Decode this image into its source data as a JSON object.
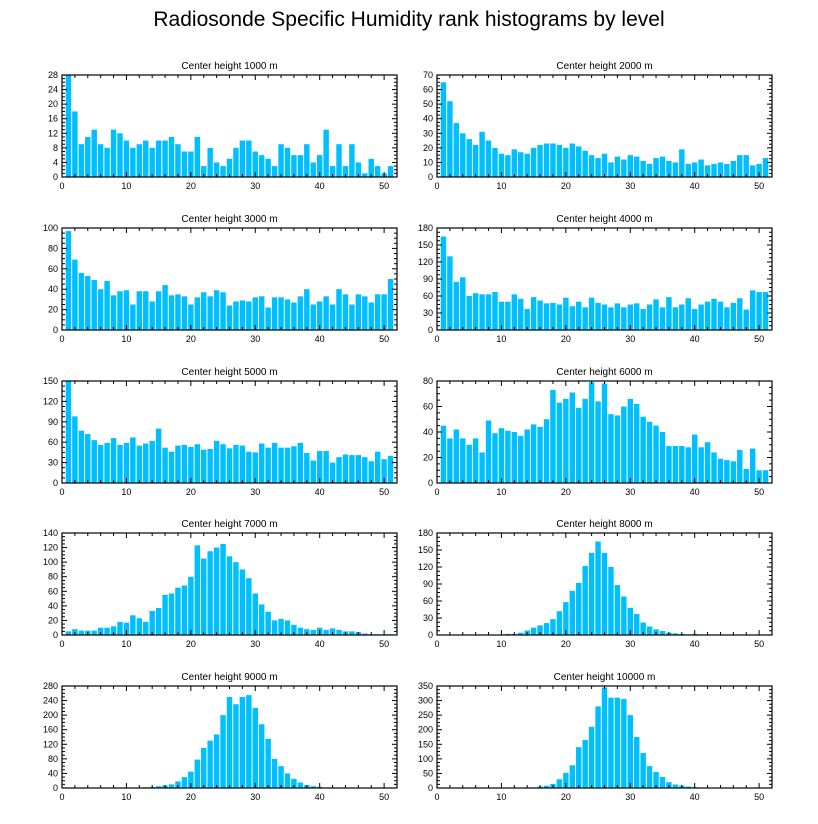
{
  "figure": {
    "title": "Radiosonde Specific Humidity rank histograms by level",
    "bar_color": "#00bfff"
  },
  "chart_data": [
    {
      "type": "bar",
      "title": "Center height 1000 m",
      "xlim": [
        0,
        52
      ],
      "ylim": [
        0,
        28
      ],
      "xticks": [
        0,
        10,
        20,
        30,
        40,
        50
      ],
      "yticks": [
        0,
        4,
        8,
        12,
        16,
        20,
        24,
        28
      ],
      "x_start": 1,
      "values": [
        28,
        18,
        9,
        11,
        13,
        9,
        8,
        13,
        12,
        10,
        8,
        9,
        10,
        8,
        10,
        10,
        11,
        9,
        7,
        7,
        11,
        3,
        8,
        4,
        3,
        5,
        8,
        10,
        10,
        7,
        6,
        5,
        3,
        9,
        8,
        6,
        6,
        9,
        4,
        6,
        13,
        3,
        9,
        3,
        9,
        4,
        1,
        5,
        3,
        1,
        3
      ]
    },
    {
      "type": "bar",
      "title": "Center height 2000 m",
      "xlim": [
        0,
        52
      ],
      "ylim": [
        0,
        70
      ],
      "xticks": [
        0,
        10,
        20,
        30,
        40,
        50
      ],
      "yticks": [
        0,
        10,
        20,
        30,
        40,
        50,
        60,
        70
      ],
      "x_start": 1,
      "values": [
        65,
        52,
        37,
        30,
        26,
        22,
        31,
        25,
        20,
        16,
        15,
        19,
        17,
        16,
        20,
        22,
        23,
        23,
        22,
        20,
        23,
        21,
        18,
        15,
        13,
        16,
        10,
        14,
        12,
        15,
        14,
        11,
        9,
        13,
        14,
        11,
        10,
        19,
        9,
        10,
        12,
        8,
        9,
        10,
        9,
        11,
        15,
        15,
        8,
        9,
        13
      ]
    },
    {
      "type": "bar",
      "title": "Center height 3000 m",
      "xlim": [
        0,
        52
      ],
      "ylim": [
        0,
        100
      ],
      "xticks": [
        0,
        10,
        20,
        30,
        40,
        50
      ],
      "yticks": [
        0,
        20,
        40,
        60,
        80,
        100
      ],
      "x_start": 1,
      "values": [
        97,
        69,
        56,
        53,
        49,
        40,
        48,
        34,
        38,
        39,
        25,
        38,
        38,
        28,
        38,
        44,
        34,
        35,
        33,
        25,
        32,
        37,
        33,
        39,
        37,
        24,
        28,
        29,
        28,
        32,
        33,
        22,
        32,
        32,
        30,
        27,
        33,
        40,
        25,
        28,
        33,
        25,
        40,
        35,
        25,
        35,
        33,
        27,
        35,
        35,
        50
      ]
    },
    {
      "type": "bar",
      "title": "Center height 4000 m",
      "xlim": [
        0,
        52
      ],
      "ylim": [
        0,
        180
      ],
      "xticks": [
        0,
        10,
        20,
        30,
        40,
        50
      ],
      "yticks": [
        0,
        30,
        60,
        90,
        120,
        150,
        180
      ],
      "x_start": 1,
      "values": [
        165,
        130,
        85,
        93,
        60,
        65,
        63,
        63,
        67,
        50,
        50,
        63,
        55,
        37,
        58,
        52,
        47,
        48,
        45,
        57,
        42,
        50,
        40,
        57,
        48,
        45,
        40,
        47,
        40,
        45,
        47,
        37,
        45,
        54,
        40,
        58,
        40,
        45,
        56,
        37,
        45,
        50,
        55,
        50,
        40,
        48,
        56,
        36,
        70,
        67,
        67
      ]
    },
    {
      "type": "bar",
      "title": "Center height 5000 m",
      "xlim": [
        0,
        52
      ],
      "ylim": [
        0,
        150
      ],
      "xticks": [
        0,
        10,
        20,
        30,
        40,
        50
      ],
      "yticks": [
        0,
        30,
        60,
        90,
        120,
        150
      ],
      "x_start": 1,
      "values": [
        150,
        98,
        77,
        72,
        63,
        56,
        59,
        66,
        56,
        59,
        67,
        55,
        58,
        62,
        80,
        52,
        46,
        55,
        56,
        53,
        57,
        49,
        50,
        62,
        57,
        51,
        56,
        55,
        46,
        45,
        58,
        52,
        59,
        52,
        52,
        54,
        59,
        44,
        33,
        47,
        47,
        30,
        38,
        42,
        41,
        41,
        38,
        32,
        46,
        35,
        40
      ]
    },
    {
      "type": "bar",
      "title": "Center height 6000 m",
      "xlim": [
        0,
        52
      ],
      "ylim": [
        0,
        80
      ],
      "xticks": [
        0,
        10,
        20,
        30,
        40,
        50
      ],
      "yticks": [
        0,
        20,
        40,
        60,
        80
      ],
      "x_start": 1,
      "values": [
        45,
        35,
        42,
        35,
        30,
        35,
        24,
        49,
        39,
        43,
        41,
        40,
        37,
        42,
        46,
        44,
        50,
        73,
        63,
        66,
        71,
        59,
        66,
        79,
        64,
        78,
        54,
        53,
        60,
        66,
        62,
        52,
        48,
        45,
        40,
        29,
        29,
        29,
        28,
        38,
        28,
        32,
        24,
        19,
        18,
        17,
        26,
        11,
        27,
        10,
        10
      ]
    },
    {
      "type": "bar",
      "title": "Center height 7000 m",
      "xlim": [
        0,
        52
      ],
      "ylim": [
        0,
        140
      ],
      "xticks": [
        0,
        10,
        20,
        30,
        40,
        50
      ],
      "yticks": [
        0,
        20,
        40,
        60,
        80,
        100,
        120,
        140
      ],
      "x_start": 1,
      "values": [
        5,
        8,
        6,
        6,
        6,
        10,
        10,
        12,
        18,
        17,
        27,
        23,
        18,
        33,
        37,
        55,
        57,
        65,
        68,
        80,
        123,
        105,
        115,
        120,
        125,
        108,
        100,
        90,
        78,
        57,
        42,
        32,
        20,
        22,
        20,
        14,
        10,
        8,
        7,
        10,
        7,
        9,
        7,
        5,
        5,
        4,
        2,
        1,
        1,
        1,
        1
      ]
    },
    {
      "type": "bar",
      "title": "Center height 8000 m",
      "xlim": [
        0,
        52
      ],
      "ylim": [
        0,
        180
      ],
      "xticks": [
        0,
        10,
        20,
        30,
        40,
        50
      ],
      "yticks": [
        0,
        30,
        60,
        90,
        120,
        150,
        180
      ],
      "x_start": 1,
      "values": [
        0,
        0,
        0,
        0,
        0,
        0,
        0,
        0,
        0,
        0,
        2,
        2,
        4,
        8,
        13,
        17,
        21,
        28,
        42,
        58,
        78,
        92,
        122,
        145,
        165,
        145,
        120,
        88,
        68,
        48,
        37,
        22,
        15,
        10,
        7,
        4,
        3,
        2,
        1,
        2,
        1,
        1,
        0,
        0,
        0,
        0,
        0,
        0,
        0,
        0,
        0
      ]
    },
    {
      "type": "bar",
      "title": "Center height 9000 m",
      "xlim": [
        0,
        52
      ],
      "ylim": [
        0,
        280
      ],
      "xticks": [
        0,
        10,
        20,
        30,
        40,
        50
      ],
      "yticks": [
        0,
        40,
        80,
        120,
        160,
        200,
        240,
        280
      ],
      "x_start": 1,
      "values": [
        0,
        0,
        0,
        0,
        0,
        0,
        0,
        0,
        0,
        0,
        0,
        0,
        2,
        3,
        5,
        7,
        10,
        18,
        30,
        45,
        78,
        110,
        130,
        147,
        200,
        250,
        230,
        250,
        255,
        220,
        175,
        135,
        80,
        60,
        40,
        25,
        15,
        8,
        5,
        3,
        1,
        1,
        0,
        0,
        0,
        0,
        0,
        0,
        0,
        0,
        0
      ]
    },
    {
      "type": "bar",
      "title": "Center height 10000 m",
      "xlim": [
        0,
        52
      ],
      "ylim": [
        0,
        350
      ],
      "xticks": [
        0,
        10,
        20,
        30,
        40,
        50
      ],
      "yticks": [
        0,
        50,
        100,
        150,
        200,
        250,
        300,
        350
      ],
      "x_start": 1,
      "values": [
        0,
        0,
        0,
        0,
        0,
        0,
        0,
        0,
        0,
        0,
        0,
        0,
        0,
        1,
        2,
        5,
        8,
        14,
        30,
        52,
        78,
        140,
        165,
        210,
        280,
        345,
        310,
        310,
        305,
        250,
        175,
        120,
        75,
        55,
        38,
        20,
        12,
        8,
        5,
        3,
        1,
        0,
        0,
        0,
        0,
        0,
        0,
        0,
        0,
        0,
        0
      ]
    }
  ]
}
